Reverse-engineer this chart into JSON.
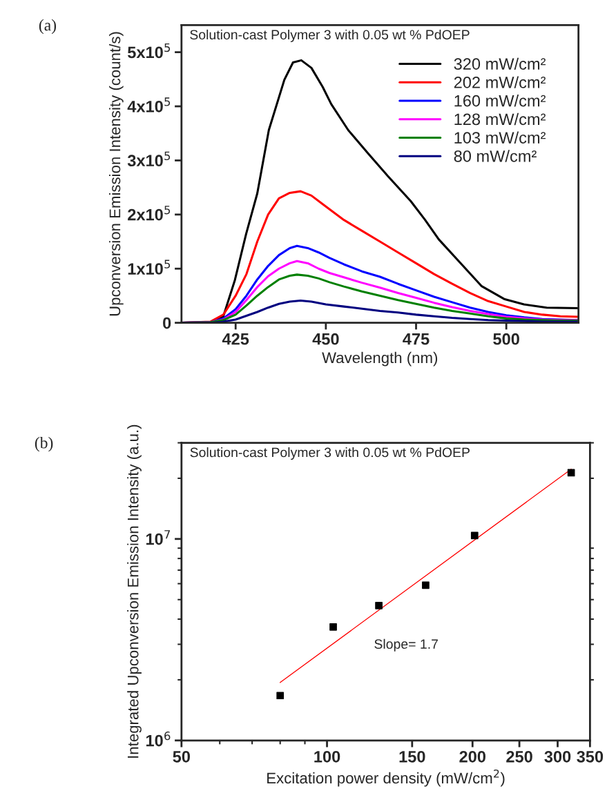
{
  "chart_data": [
    {
      "type": "line",
      "xlabel": "Wavelength (nm)",
      "ylabel": "Upconversion Emission Intensity (count/s)",
      "legend": "top right",
      "grid": false,
      "marker": "none",
      "line_style": "solid",
      "annotations": [
        "(a)",
        "Solution-cast Polymer 3 with 0.05 wt % PdOEP"
      ],
      "xlim": [
        410,
        520
      ],
      "xticks": [
        425,
        450,
        475,
        500
      ],
      "ylim": [
        0,
        550000
      ],
      "yticks": [
        {
          "value": 0,
          "label": "0"
        },
        {
          "value": 100000,
          "label": "1x10$^{5}$"
        },
        {
          "value": 200000,
          "label": "2x10$^{5}$"
        },
        {
          "value": 300000,
          "label": "3x10$^{5}$"
        },
        {
          "value": 400000,
          "label": "4x10$^{5}$"
        },
        {
          "value": 500000,
          "label": "5x10$^{5}$"
        }
      ],
      "series": [
        {
          "name": "320 mW/cm²",
          "color": "#000000",
          "x": [
            410.6,
            418.5,
            421.6,
            424.8,
            427.9,
            431,
            434.2,
            438.5,
            440.9,
            443.2,
            446,
            449.1,
            451.5,
            456.2,
            461.7,
            467.2,
            473.5,
            477.4,
            481.3,
            486.8,
            493.1,
            499.4,
            504.9,
            511.2,
            520
          ],
          "values": [
            0,
            1000,
            12000,
            79000,
            164000,
            239000,
            356000,
            449000,
            481000,
            485000,
            471000,
            436000,
            404000,
            356000,
            313000,
            271000,
            225000,
            191000,
            154000,
            114000,
            68000,
            44000,
            34000,
            28000,
            27000
          ]
        },
        {
          "name": "202 mW/cm²",
          "color": "#ff0000",
          "x": [
            410,
            418,
            421.6,
            425,
            428,
            431,
            434,
            437,
            440,
            443,
            446,
            449,
            452,
            455,
            460,
            465,
            470,
            475,
            480,
            485,
            490,
            495,
            500,
            505,
            510,
            515,
            520
          ],
          "values": [
            0,
            2000,
            15000,
            50000,
            90000,
            150000,
            200000,
            230000,
            240000,
            243000,
            235000,
            220000,
            205000,
            190000,
            170000,
            150000,
            130000,
            110000,
            90000,
            72000,
            55000,
            40000,
            30000,
            20000,
            15000,
            12000,
            11000
          ]
        },
        {
          "name": "160 mW/cm²",
          "color": "#0000ff",
          "x": [
            410,
            418,
            421.6,
            425,
            428,
            431,
            434,
            437,
            440,
            442,
            445,
            448,
            451,
            455,
            460,
            465,
            470,
            475,
            480,
            485,
            490,
            495,
            500,
            505,
            510,
            515,
            520
          ],
          "values": [
            0,
            1000,
            8000,
            25000,
            50000,
            80000,
            105000,
            125000,
            138000,
            142000,
            138000,
            130000,
            120000,
            108000,
            95000,
            85000,
            72000,
            60000,
            48000,
            38000,
            28000,
            20000,
            14000,
            10000,
            7000,
            6000,
            5000
          ]
        },
        {
          "name": "128 mW/cm²",
          "color": "#ff00ff",
          "x": [
            410,
            418,
            421.6,
            425,
            428,
            431,
            434,
            437,
            440,
            442,
            445,
            448,
            451,
            455,
            460,
            465,
            470,
            475,
            480,
            485,
            490,
            495,
            500,
            505,
            510,
            515,
            520
          ],
          "values": [
            0,
            1000,
            6000,
            20000,
            42000,
            66000,
            86000,
            100000,
            110000,
            114000,
            110000,
            100000,
            92000,
            84000,
            74000,
            65000,
            55000,
            46000,
            37000,
            29000,
            22000,
            16000,
            11000,
            8000,
            6000,
            5000,
            5000
          ]
        },
        {
          "name": "103 mW/cm²",
          "color": "#008000",
          "x": [
            410,
            418,
            421.6,
            425,
            428,
            431,
            434,
            437,
            440,
            442,
            445,
            448,
            451,
            455,
            460,
            465,
            470,
            475,
            480,
            485,
            490,
            495,
            500,
            505,
            510,
            515,
            520
          ],
          "values": [
            0,
            1000,
            5000,
            15000,
            32000,
            50000,
            66000,
            80000,
            87000,
            89000,
            87000,
            82000,
            75000,
            67000,
            58000,
            50000,
            42000,
            35000,
            28000,
            22000,
            17000,
            12000,
            8000,
            6000,
            5000,
            4000,
            4000
          ]
        },
        {
          "name": "80 mW/cm²",
          "color": "#000080",
          "x": [
            410,
            418,
            421.6,
            425,
            428,
            431,
            434,
            437,
            440,
            443,
            446,
            450,
            455,
            460,
            465,
            470,
            475,
            480,
            485,
            490,
            495,
            500,
            505,
            510,
            515,
            520
          ],
          "values": [
            0,
            0,
            2000,
            6000,
            13000,
            20000,
            28000,
            35000,
            39000,
            41000,
            39000,
            34000,
            30000,
            26000,
            22000,
            19000,
            15000,
            12000,
            9000,
            7000,
            5000,
            4000,
            3000,
            2000,
            2000,
            2000
          ]
        }
      ]
    },
    {
      "type": "scatter",
      "xlabel": "Excitation power density (mW/cm$^{2}$)",
      "ylabel": "Integrated Upconversion Emission Intensity (a.u.)",
      "log": "xy",
      "grid": false,
      "annotations": [
        "(b)",
        "Solution-cast Polymer 3 with 0.05 wt % PdOEP",
        "Slope= 1.7"
      ],
      "xlim": [
        50,
        350
      ],
      "xticks": [
        50,
        100,
        150,
        200,
        250,
        300,
        350
      ],
      "ylim": [
        1000000,
        30000000
      ],
      "yticks": [
        {
          "value": 1000000,
          "label": "10$^{6}$"
        },
        {
          "value": 10000000,
          "label": "10$^{7}$"
        }
      ],
      "series": [
        {
          "color": "#000000",
          "marker": "square",
          "x": [
            80,
            103,
            128,
            160,
            202,
            320
          ],
          "values": [
            1670000,
            3660000,
            4670000,
            5890000,
            10400000,
            21300000
          ]
        },
        {
          "type": "line",
          "marker": "none",
          "color": "#ff0000",
          "x": [
            80,
            320
          ],
          "values": [
            1940000,
            22200000
          ]
        }
      ]
    }
  ]
}
